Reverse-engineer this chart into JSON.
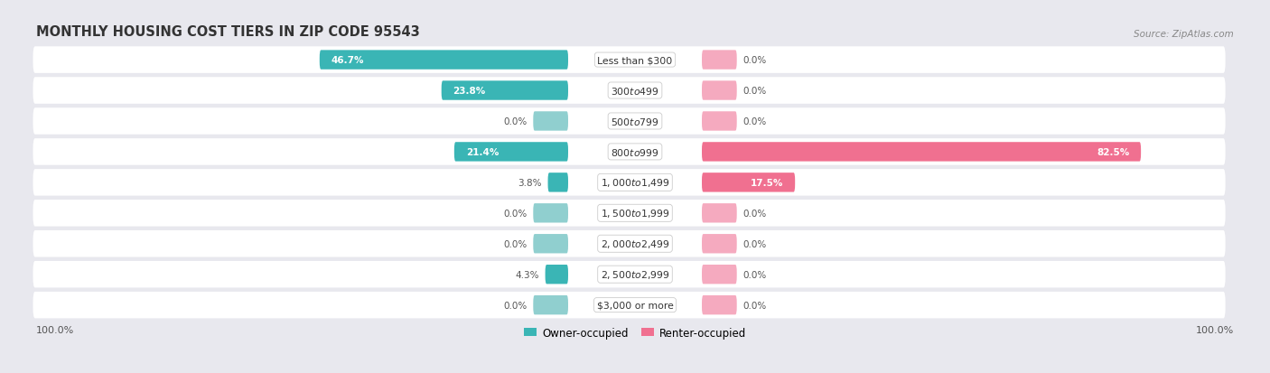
{
  "title": "MONTHLY HOUSING COST TIERS IN ZIP CODE 95543",
  "source": "Source: ZipAtlas.com",
  "categories": [
    "Less than $300",
    "$300 to $499",
    "$500 to $799",
    "$800 to $999",
    "$1,000 to $1,499",
    "$1,500 to $1,999",
    "$2,000 to $2,499",
    "$2,500 to $2,999",
    "$3,000 or more"
  ],
  "owner_values": [
    46.7,
    23.8,
    0.0,
    21.4,
    3.8,
    0.0,
    0.0,
    4.3,
    0.0
  ],
  "renter_values": [
    0.0,
    0.0,
    0.0,
    82.5,
    17.5,
    0.0,
    0.0,
    0.0,
    0.0
  ],
  "owner_color": "#3ab5b5",
  "renter_color": "#f07090",
  "owner_color_light": "#90cfcf",
  "renter_color_light": "#f5aabf",
  "bg_color": "#e8e8ee",
  "row_bg_color": "#ffffff",
  "title_color": "#333333",
  "source_color": "#888888",
  "label_outside_color": "#555555",
  "label_inside_color": "#ffffff",
  "legend_owner": "Owner-occupied",
  "legend_renter": "Renter-occupied",
  "fig_width": 14.06,
  "fig_height": 4.14
}
